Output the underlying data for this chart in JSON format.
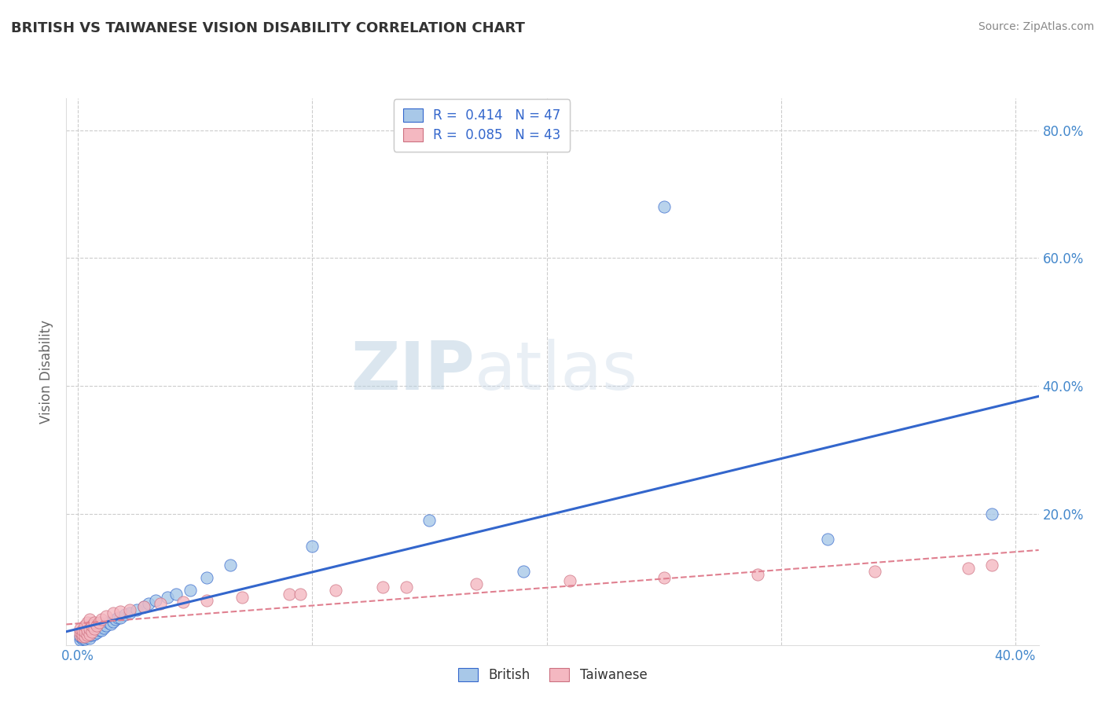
{
  "title": "BRITISH VS TAIWANESE VISION DISABILITY CORRELATION CHART",
  "source": "Source: ZipAtlas.com",
  "ylabel_label": "Vision Disability",
  "xlim": [
    -0.005,
    0.41
  ],
  "ylim": [
    -0.005,
    0.85
  ],
  "xtick_vals": [
    0.0,
    0.4
  ],
  "xtick_labels": [
    "0.0%",
    "40.0%"
  ],
  "ytick_vals": [
    0.2,
    0.4,
    0.6,
    0.8
  ],
  "ytick_labels": [
    "20.0%",
    "40.0%",
    "60.0%",
    "80.0%"
  ],
  "grid_ytick_vals": [
    0.2,
    0.4,
    0.6,
    0.8
  ],
  "grid_xtick_vals": [
    0.0,
    0.1,
    0.2,
    0.3,
    0.4
  ],
  "legend_label_british": "R =  0.414   N = 47",
  "legend_label_taiwanese": "R =  0.085   N = 43",
  "british_color": "#a8c8e8",
  "taiwanese_color": "#f4b8c1",
  "trendline_british_color": "#3366cc",
  "trendline_taiwanese_color": "#e08090",
  "background_color": "#ffffff",
  "grid_color": "#cccccc",
  "title_color": "#333333",
  "axis_label_color": "#666666",
  "tick_color": "#4488cc",
  "source_color": "#888888",
  "watermark_zip": "ZIP",
  "watermark_atlas": "atlas",
  "british_x": [
    0.001,
    0.001,
    0.002,
    0.002,
    0.002,
    0.003,
    0.003,
    0.003,
    0.004,
    0.004,
    0.005,
    0.005,
    0.005,
    0.006,
    0.006,
    0.007,
    0.007,
    0.008,
    0.008,
    0.009,
    0.01,
    0.01,
    0.011,
    0.012,
    0.013,
    0.014,
    0.015,
    0.016,
    0.017,
    0.018,
    0.02,
    0.022,
    0.025,
    0.028,
    0.03,
    0.033,
    0.038,
    0.042,
    0.048,
    0.055,
    0.065,
    0.1,
    0.15,
    0.19,
    0.25,
    0.32,
    0.39
  ],
  "british_y": [
    0.003,
    0.008,
    0.004,
    0.007,
    0.01,
    0.005,
    0.008,
    0.012,
    0.007,
    0.01,
    0.006,
    0.01,
    0.015,
    0.01,
    0.015,
    0.012,
    0.018,
    0.014,
    0.02,
    0.018,
    0.018,
    0.025,
    0.022,
    0.025,
    0.03,
    0.028,
    0.032,
    0.035,
    0.038,
    0.038,
    0.042,
    0.045,
    0.05,
    0.055,
    0.06,
    0.065,
    0.07,
    0.075,
    0.08,
    0.1,
    0.12,
    0.15,
    0.19,
    0.11,
    0.68,
    0.16,
    0.2
  ],
  "taiwanese_x": [
    0.001,
    0.001,
    0.001,
    0.002,
    0.002,
    0.002,
    0.003,
    0.003,
    0.003,
    0.004,
    0.004,
    0.004,
    0.005,
    0.005,
    0.005,
    0.006,
    0.006,
    0.007,
    0.007,
    0.008,
    0.009,
    0.01,
    0.012,
    0.015,
    0.018,
    0.022,
    0.028,
    0.035,
    0.045,
    0.055,
    0.07,
    0.09,
    0.11,
    0.14,
    0.17,
    0.21,
    0.25,
    0.29,
    0.34,
    0.38,
    0.095,
    0.13,
    0.39
  ],
  "taiwanese_y": [
    0.01,
    0.015,
    0.02,
    0.008,
    0.012,
    0.018,
    0.008,
    0.015,
    0.025,
    0.01,
    0.018,
    0.03,
    0.012,
    0.02,
    0.035,
    0.015,
    0.025,
    0.02,
    0.03,
    0.025,
    0.03,
    0.035,
    0.04,
    0.045,
    0.048,
    0.05,
    0.055,
    0.06,
    0.062,
    0.065,
    0.07,
    0.075,
    0.08,
    0.085,
    0.09,
    0.095,
    0.1,
    0.105,
    0.11,
    0.115,
    0.075,
    0.085,
    0.12
  ]
}
